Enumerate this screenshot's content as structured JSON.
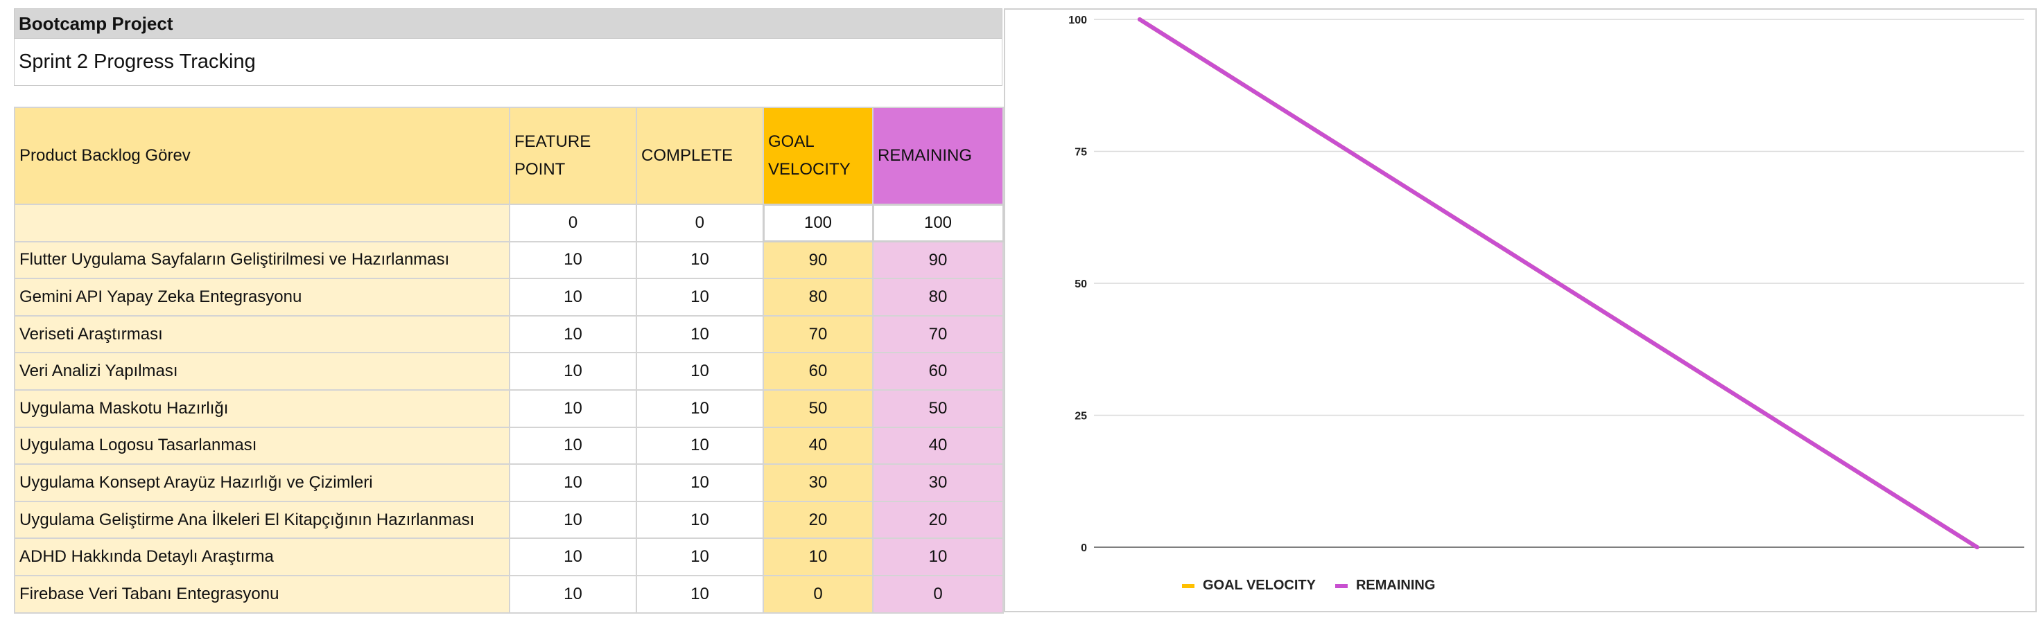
{
  "header": {
    "title": "Bootcamp Project",
    "subtitle": "Sprint 2 Progress Tracking"
  },
  "table": {
    "columns": [
      "Product Backlog Görev",
      "FEATURE POINT",
      "COMPLETE",
      "GOAL VELOCITY",
      "REMAINING"
    ],
    "baseline": {
      "task": "",
      "feature_point": "0",
      "complete": "0",
      "goal_velocity": "100",
      "remaining": "100"
    },
    "rows": [
      {
        "task": "Flutter Uygulama Sayfaların Geliştirilmesi ve Hazırlanması",
        "feature_point": "10",
        "complete": "10",
        "goal_velocity": "90",
        "remaining": "90"
      },
      {
        "task": "Gemini API Yapay Zeka Entegrasyonu",
        "feature_point": "10",
        "complete": "10",
        "goal_velocity": "80",
        "remaining": "80"
      },
      {
        "task": "Veriseti Araştırması",
        "feature_point": "10",
        "complete": "10",
        "goal_velocity": "70",
        "remaining": "70"
      },
      {
        "task": "Veri Analizi Yapılması",
        "feature_point": "10",
        "complete": "10",
        "goal_velocity": "60",
        "remaining": "60"
      },
      {
        "task": "Uygulama Maskotu Hazırlığı",
        "feature_point": "10",
        "complete": "10",
        "goal_velocity": "50",
        "remaining": "50"
      },
      {
        "task": "Uygulama Logosu Tasarlanması",
        "feature_point": "10",
        "complete": "10",
        "goal_velocity": "40",
        "remaining": "40"
      },
      {
        "task": "Uygulama Konsept Arayüz Hazırlığı ve Çizimleri",
        "feature_point": "10",
        "complete": "10",
        "goal_velocity": "30",
        "remaining": "30"
      },
      {
        "task": "Uygulama Geliştirme Ana İlkeleri El Kitapçığının Hazırlanması",
        "feature_point": "10",
        "complete": "10",
        "goal_velocity": "20",
        "remaining": "20"
      },
      {
        "task": "ADHD Hakkında Detaylı Araştırma",
        "feature_point": "10",
        "complete": "10",
        "goal_velocity": "10",
        "remaining": "10"
      },
      {
        "task": "Firebase Veri Tabanı Entegrasyonu",
        "feature_point": "10",
        "complete": "10",
        "goal_velocity": "0",
        "remaining": "0"
      }
    ]
  },
  "colors": {
    "goal_velocity": "#ffc000",
    "remaining": "#c84fd0",
    "header_fill": "#fee599",
    "task_fill": "#fff2cc",
    "remaining_fill": "#f0c6e6"
  },
  "chart_data": {
    "type": "line",
    "title": "",
    "xlabel": "",
    "ylabel": "",
    "x": [
      1,
      2,
      3,
      4,
      5,
      6,
      7,
      8,
      9,
      10,
      11
    ],
    "ylim": [
      0,
      100
    ],
    "yticks": [
      "0",
      "25",
      "50",
      "75",
      "100"
    ],
    "grid": true,
    "legend": "bottom-left",
    "series": [
      {
        "name": "GOAL VELOCITY",
        "color": "#ffc000",
        "values": [
          100,
          90,
          80,
          70,
          60,
          50,
          40,
          30,
          20,
          10,
          0
        ]
      },
      {
        "name": "REMAINING",
        "color": "#c84fd0",
        "values": [
          100,
          90,
          80,
          70,
          60,
          50,
          40,
          30,
          20,
          10,
          0
        ]
      }
    ]
  }
}
